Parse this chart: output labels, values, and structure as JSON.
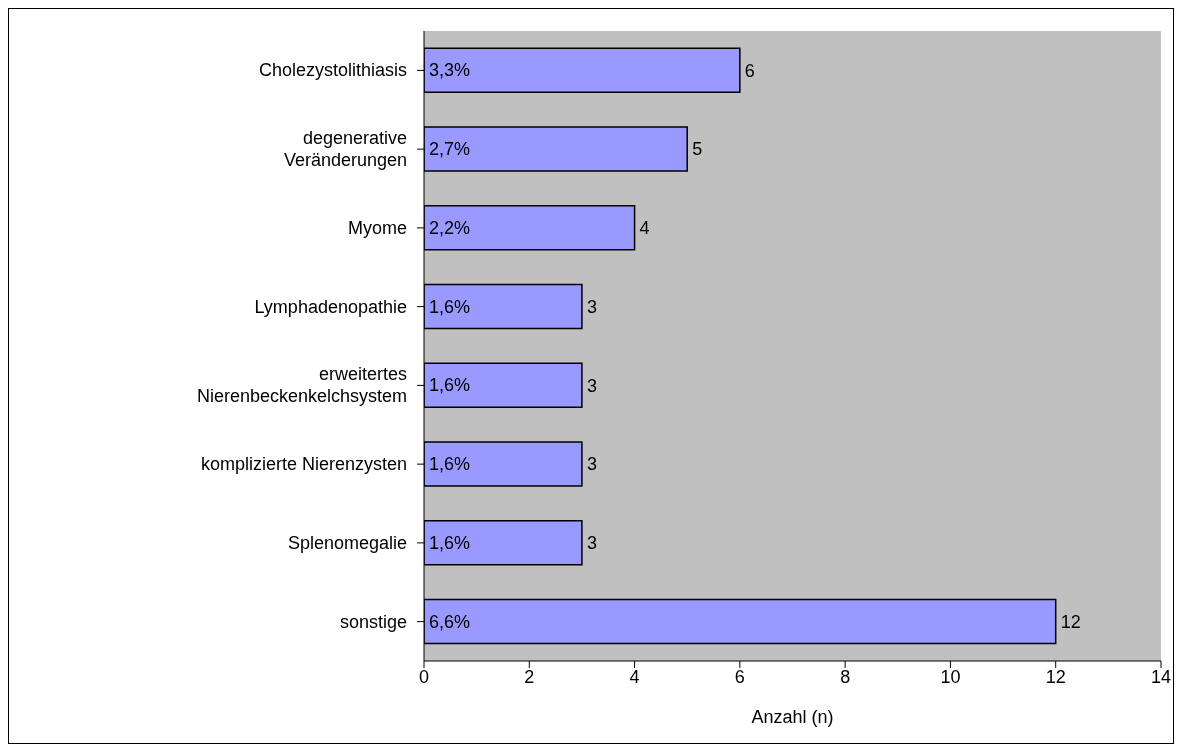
{
  "chart_data": {
    "type": "bar",
    "orientation": "horizontal",
    "xlabel": "Anzahl (n)",
    "categories": [
      "Cholezystolithiasis",
      "degenerative Veränderungen",
      "Myome",
      "Lymphadenopathie",
      "erweitertes Nierenbeckenkelchsystem",
      "komplizierte Nierenzysten",
      "Splenomegalie",
      "sonstige"
    ],
    "values": [
      6,
      5,
      4,
      3,
      3,
      3,
      3,
      12
    ],
    "color": "#9999ff",
    "xlim": [
      0,
      14
    ],
    "xticks": [
      0,
      2,
      4,
      6,
      8,
      10,
      12,
      14
    ],
    "data_labels": true,
    "grid": false,
    "legend": false,
    "annotations": [
      "3,3%",
      "2,7%",
      "2,2%",
      "1,6%",
      "1,6%",
      "1,6%",
      "1,6%",
      "6,6%"
    ]
  }
}
